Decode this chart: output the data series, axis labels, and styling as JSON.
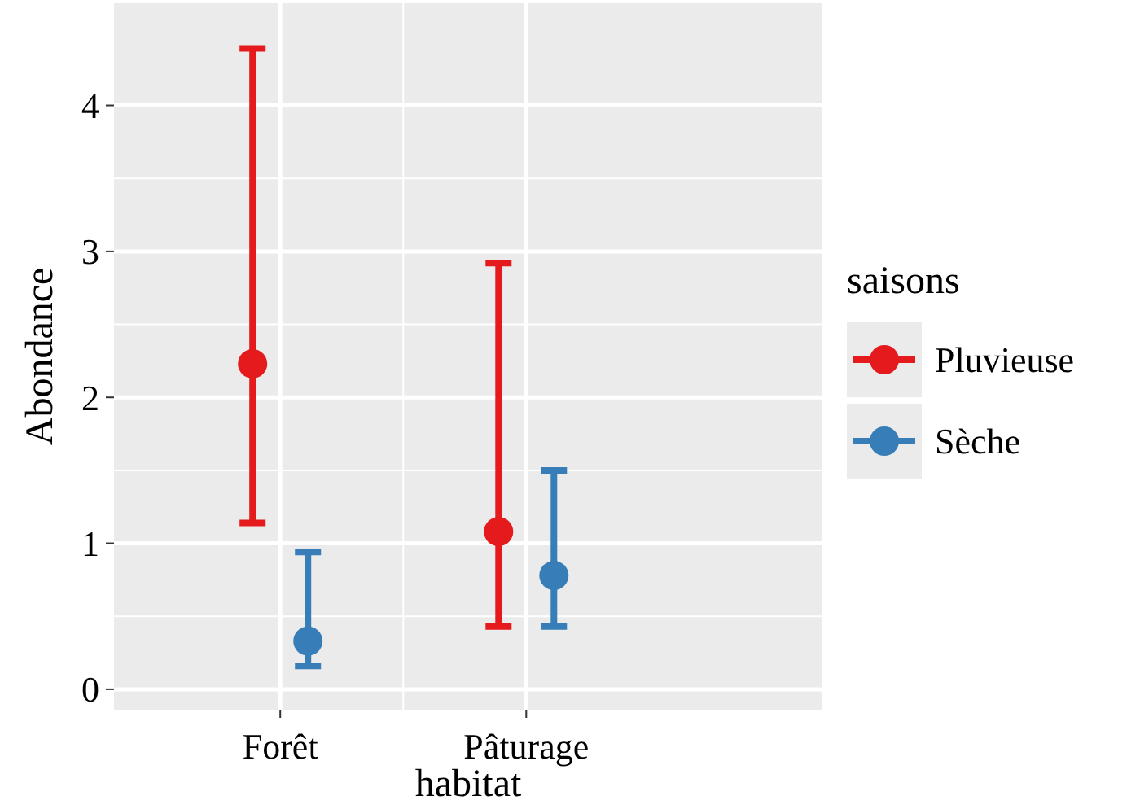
{
  "chart_data": {
    "type": "scatter",
    "xlabel": "habitat",
    "ylabel": "Abondance",
    "legend_title": "saisons",
    "categories": [
      "Forêt",
      "Pâturage"
    ],
    "series": [
      {
        "name": "Pluvieuse",
        "color": "#e41a1c",
        "values": [
          2.23,
          1.08
        ],
        "errors": [
          [
            1.14,
            4.39
          ],
          [
            0.43,
            2.92
          ]
        ]
      },
      {
        "name": "Sèche",
        "color": "#377eb8",
        "values": [
          0.33,
          0.78
        ],
        "errors": [
          [
            0.16,
            0.94
          ],
          [
            0.43,
            1.5
          ]
        ]
      }
    ],
    "ylim": [
      -0.14,
      4.7
    ],
    "yticks": [
      0,
      1,
      2,
      3,
      4
    ],
    "grid": true,
    "legend": "right",
    "marker": "circle"
  }
}
